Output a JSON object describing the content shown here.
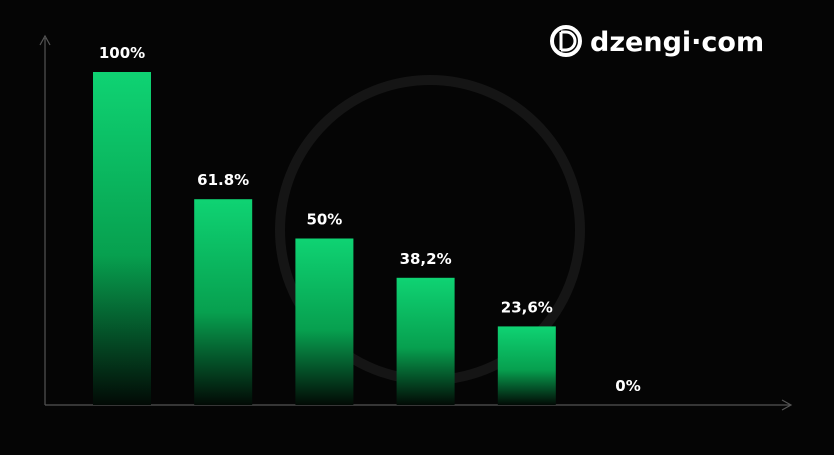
{
  "logo": "dzengi·com",
  "chart_data": {
    "type": "bar",
    "values": [
      100,
      61.8,
      50,
      38.2,
      23.6,
      0
    ],
    "value_labels": [
      "100%",
      "61.8%",
      "50%",
      "38,2%",
      "23,6%",
      "0%"
    ],
    "color": "#0fd373"
  }
}
